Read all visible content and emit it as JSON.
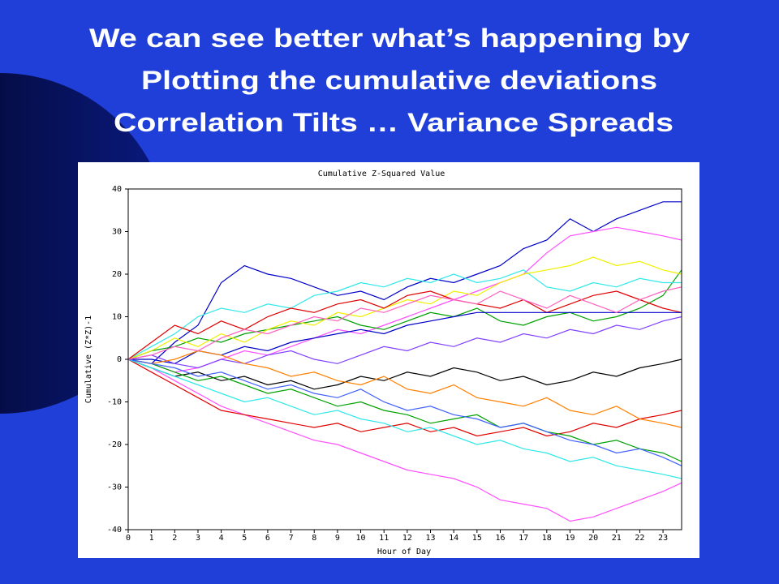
{
  "slide_title": [
    "We can see better what’s happening by",
    "Plotting the cumulative deviations",
    "Correlation Tilts … Variance Spreads"
  ],
  "chart_data": {
    "type": "line",
    "title": "Cumulative Z-Squared Value",
    "x_label": "Hour of Day",
    "y_label": "Cumulative (Z*Z)-1",
    "xlim": [
      0,
      23.8
    ],
    "xticks": [
      0,
      1,
      2,
      3,
      4,
      5,
      6,
      7,
      8,
      9,
      10,
      11,
      12,
      13,
      14,
      15,
      16,
      17,
      18,
      19,
      20,
      21,
      22,
      23
    ],
    "ylim": [
      -40,
      40
    ],
    "yticks": [
      -40,
      -30,
      -20,
      -10,
      0,
      10,
      20,
      30,
      40
    ],
    "grid": false,
    "x": [
      0,
      1,
      2,
      3,
      4,
      5,
      6,
      7,
      8,
      9,
      10,
      11,
      12,
      13,
      14,
      15,
      16,
      17,
      18,
      19,
      20,
      21,
      22,
      23,
      23.8
    ],
    "series": [
      {
        "color": "#0000c8",
        "values": [
          0,
          -1,
          4,
          8,
          18,
          22,
          20,
          19,
          17,
          15,
          16,
          14,
          17,
          19,
          18,
          20,
          22,
          26,
          28,
          33,
          30,
          33,
          35,
          37,
          37
        ]
      },
      {
        "color": "#ff50ff",
        "values": [
          0,
          -1,
          -3,
          -2,
          0,
          2,
          1,
          3,
          5,
          7,
          6,
          8,
          10,
          12,
          14,
          16,
          18,
          20,
          25,
          29,
          30,
          31,
          30,
          29,
          28
        ]
      },
      {
        "color": "#ff50ff",
        "values": [
          0,
          -2,
          -5,
          -8,
          -11,
          -13,
          -15,
          -17,
          -19,
          -20,
          -22,
          -24,
          -26,
          -27,
          -28,
          -30,
          -33,
          -34,
          -35,
          -38,
          -37,
          -35,
          -33,
          -31,
          -29
        ]
      },
      {
        "color": "#e00000",
        "values": [
          0,
          -3,
          -6,
          -9,
          -12,
          -13,
          -14,
          -15,
          -16,
          -15,
          -17,
          -16,
          -15,
          -17,
          -16,
          -18,
          -17,
          -16,
          -18,
          -17,
          -15,
          -16,
          -14,
          -13,
          -12
        ]
      },
      {
        "color": "#00a000",
        "values": [
          0,
          2,
          3,
          5,
          4,
          6,
          7,
          8,
          9,
          10,
          8,
          7,
          9,
          11,
          10,
          12,
          9,
          8,
          10,
          11,
          9,
          10,
          12,
          15,
          21
        ]
      },
      {
        "color": "#30e8e8",
        "values": [
          0,
          3,
          6,
          10,
          12,
          11,
          13,
          12,
          15,
          16,
          18,
          17,
          19,
          18,
          20,
          18,
          19,
          21,
          17,
          16,
          18,
          17,
          19,
          18,
          18
        ]
      },
      {
        "color": "#f0f000",
        "values": [
          0,
          2,
          5,
          3,
          6,
          4,
          7,
          9,
          8,
          11,
          10,
          12,
          14,
          13,
          16,
          15,
          18,
          20,
          21,
          22,
          24,
          22,
          23,
          21,
          20
        ]
      },
      {
        "color": "#e00000",
        "values": [
          0,
          4,
          8,
          6,
          9,
          7,
          10,
          12,
          11,
          13,
          14,
          12,
          15,
          16,
          14,
          13,
          12,
          14,
          11,
          13,
          15,
          16,
          14,
          12,
          11
        ]
      },
      {
        "color": "#0000c8",
        "values": [
          0,
          0,
          -1,
          2,
          1,
          3,
          2,
          4,
          5,
          6,
          7,
          6,
          8,
          9,
          10,
          11,
          11,
          11,
          11,
          11,
          11,
          11,
          11,
          11,
          11
        ]
      },
      {
        "color": "#000000",
        "values": [
          0,
          -2,
          -4,
          -3,
          -5,
          -4,
          -6,
          -5,
          -7,
          -6,
          -4,
          -5,
          -3,
          -4,
          -2,
          -3,
          -5,
          -4,
          -6,
          -5,
          -3,
          -4,
          -2,
          -1,
          0
        ]
      },
      {
        "color": "#00a000",
        "values": [
          0,
          -1,
          -3,
          -5,
          -4,
          -6,
          -8,
          -7,
          -9,
          -11,
          -10,
          -12,
          -13,
          -15,
          -14,
          -13,
          -16,
          -15,
          -17,
          -18,
          -20,
          -19,
          -21,
          -22,
          -24
        ]
      },
      {
        "color": "#8040ff",
        "values": [
          0,
          1,
          -1,
          -2,
          0,
          -1,
          1,
          2,
          0,
          -1,
          1,
          3,
          2,
          4,
          3,
          5,
          4,
          6,
          5,
          7,
          6,
          8,
          7,
          9,
          10
        ]
      },
      {
        "color": "#ff8000",
        "values": [
          0,
          -1,
          0,
          2,
          1,
          -1,
          -2,
          -4,
          -3,
          -5,
          -6,
          -4,
          -7,
          -8,
          -6,
          -9,
          -10,
          -11,
          -9,
          -12,
          -13,
          -11,
          -14,
          -15,
          -16
        ]
      },
      {
        "color": "#30e8e8",
        "values": [
          0,
          -2,
          -4,
          -6,
          -8,
          -10,
          -9,
          -11,
          -13,
          -12,
          -14,
          -15,
          -17,
          -16,
          -18,
          -20,
          -19,
          -21,
          -22,
          -24,
          -23,
          -25,
          -26,
          -27,
          -28
        ]
      },
      {
        "color": "#4060ff",
        "values": [
          0,
          -1,
          -2,
          -4,
          -3,
          -5,
          -7,
          -6,
          -8,
          -9,
          -7,
          -10,
          -12,
          -11,
          -13,
          -14,
          -16,
          -15,
          -17,
          -19,
          -20,
          -22,
          -21,
          -23,
          -25
        ]
      },
      {
        "color": "#ff60c0",
        "values": [
          0,
          1,
          3,
          2,
          5,
          7,
          6,
          8,
          10,
          9,
          12,
          11,
          13,
          15,
          14,
          13,
          16,
          14,
          12,
          15,
          13,
          11,
          14,
          16,
          17
        ]
      }
    ]
  }
}
